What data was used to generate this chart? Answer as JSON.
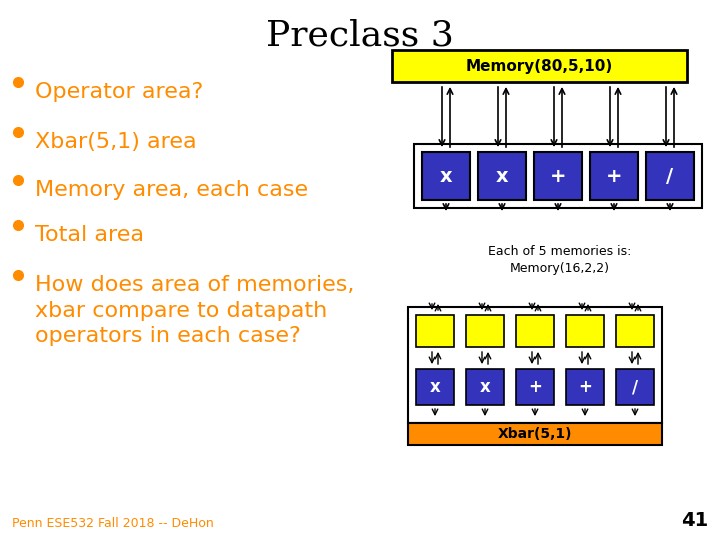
{
  "title": "Preclass 3",
  "title_fontsize": 26,
  "title_color": "#000000",
  "title_font": "serif",
  "bullet_color": "#FF8C00",
  "bullet_fontsize": 16,
  "bullet_font": "sans-serif",
  "bullets": [
    "Operator area?",
    "Xbar(5,1) area",
    "Memory area, each case",
    "Total area",
    "How does area of memories,\nxbar compare to datapath\noperators in each case?"
  ],
  "footer_text": "Penn ESE532 Fall 2018 -- DeHon",
  "footer_fontsize": 9,
  "footer_color": "#FF8C00",
  "page_number": "41",
  "page_number_fontsize": 14,
  "background_color": "#FFFFFF",
  "memory_label": "Memory(80,5,10)",
  "memory_label_bg": "#FFFF00",
  "each_memory_label": "Each of 5 memories is:\nMemory(16,2,2)",
  "xbar_label": "Xbar(5,1)",
  "xbar_label_bg": "#FF8C00",
  "box_blue": "#3333BB",
  "box_yellow": "#FFFF00",
  "op_symbols": [
    "x",
    "x",
    "+",
    "+",
    "/"
  ]
}
